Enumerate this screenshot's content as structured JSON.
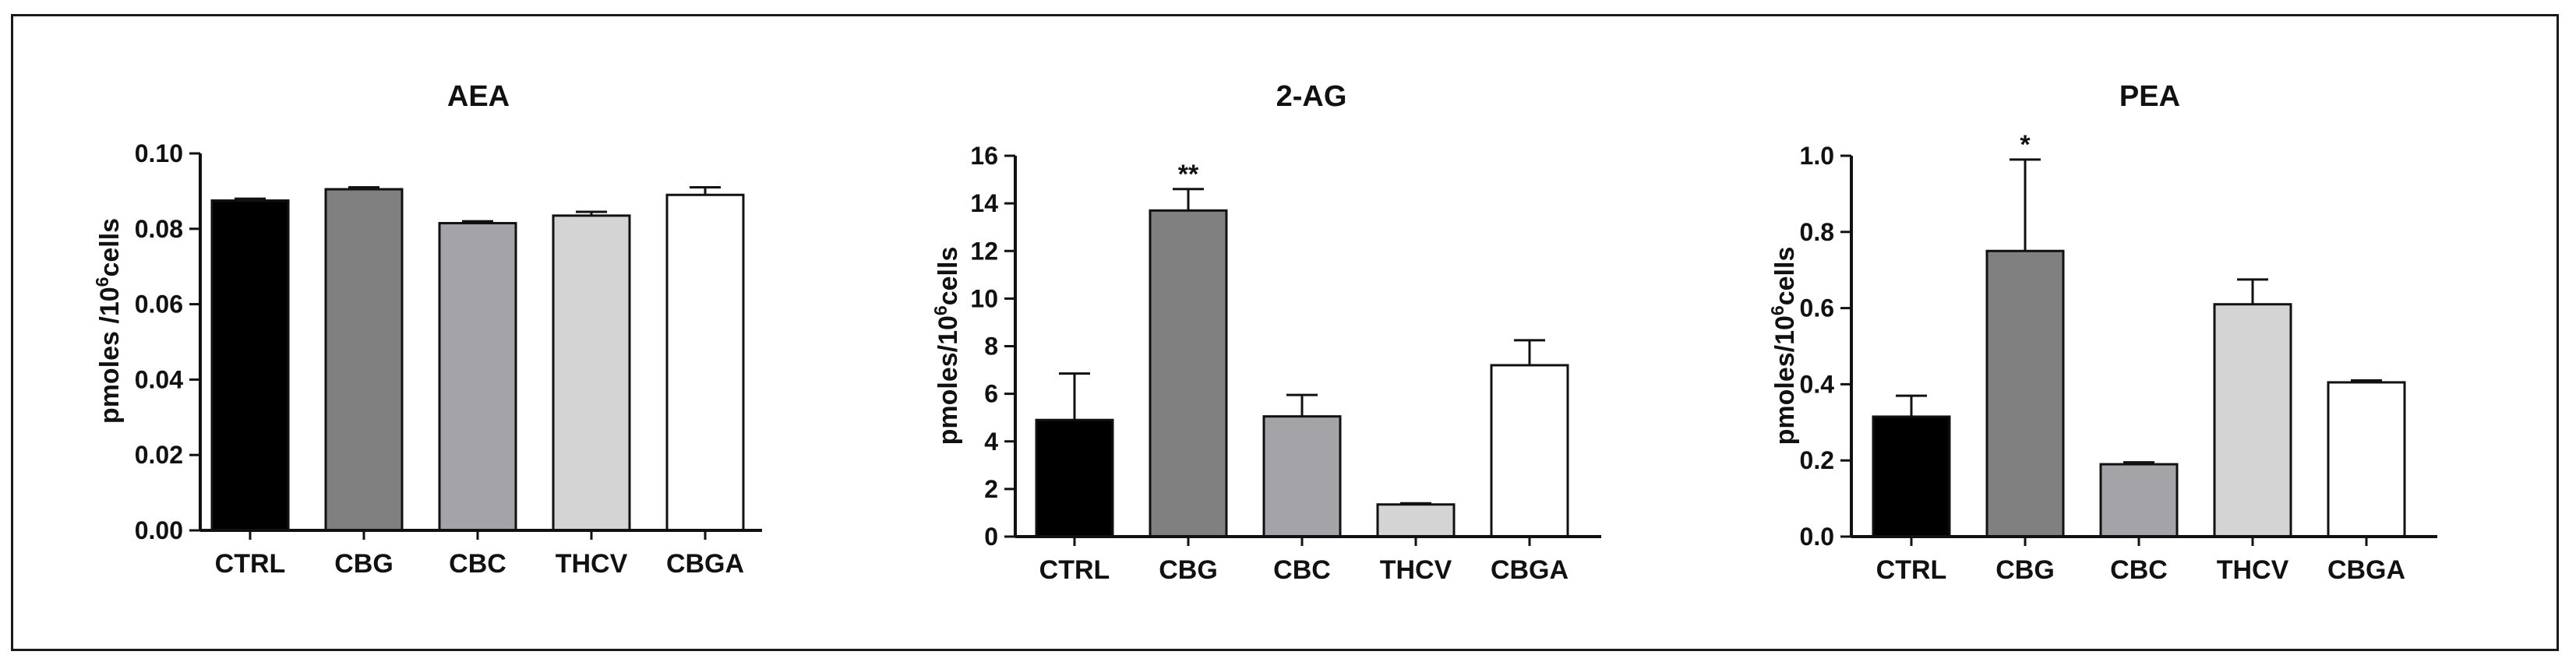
{
  "chart_data": [
    {
      "type": "bar",
      "title": "AEA",
      "ylabel_main": "pmoles /10",
      "ylabel_sup": "6",
      "ylabel_tail": "cells",
      "xlabel": "",
      "ylim": [
        0,
        0.1
      ],
      "yticks": [
        "0.00",
        "0.02",
        "0.04",
        "0.06",
        "0.08",
        "0.10"
      ],
      "categories": [
        "CTRL",
        "CBG",
        "CBC",
        "THCV",
        "CBGA"
      ],
      "values": [
        0.0875,
        0.0905,
        0.0815,
        0.0835,
        0.089
      ],
      "errors": [
        0.0005,
        0.0005,
        0.0005,
        0.001,
        0.002
      ],
      "fill_colors": [
        "#000000",
        "#808080",
        "#a3a3a8",
        "#d4d4d4",
        "#ffffff"
      ],
      "annotations": [
        "",
        "",
        "",
        "",
        ""
      ]
    },
    {
      "type": "bar",
      "title": "2-AG",
      "ylabel_main": "pmoles/10",
      "ylabel_sup": "6",
      "ylabel_tail": "cells",
      "xlabel": "",
      "ylim": [
        0,
        16
      ],
      "yticks": [
        "0",
        "2",
        "4",
        "6",
        "8",
        "10",
        "12",
        "14",
        "16"
      ],
      "categories": [
        "CTRL",
        "CBG",
        "CBC",
        "THCV",
        "CBGA"
      ],
      "values": [
        4.9,
        13.7,
        5.05,
        1.35,
        7.2
      ],
      "errors": [
        1.95,
        0.9,
        0.9,
        0.05,
        1.05
      ],
      "fill_colors": [
        "#000000",
        "#808080",
        "#a3a3a8",
        "#d4d4d4",
        "#ffffff"
      ],
      "annotations": [
        "",
        "**",
        "",
        "",
        ""
      ]
    },
    {
      "type": "bar",
      "title": "PEA",
      "ylabel_main": "pmoles/10",
      "ylabel_sup": "6",
      "ylabel_tail": "cells",
      "xlabel": "",
      "ylim": [
        0,
        1.0
      ],
      "yticks": [
        "0.0",
        "0.2",
        "0.4",
        "0.6",
        "0.8",
        "1.0"
      ],
      "categories": [
        "CTRL",
        "CBG",
        "CBC",
        "THCV",
        "CBGA"
      ],
      "values": [
        0.315,
        0.75,
        0.19,
        0.61,
        0.405
      ],
      "errors": [
        0.055,
        0.24,
        0.005,
        0.065,
        0.005
      ],
      "fill_colors": [
        "#000000",
        "#808080",
        "#a3a3a8",
        "#d4d4d4",
        "#ffffff"
      ],
      "annotations": [
        "",
        "*",
        "",
        "",
        ""
      ]
    }
  ]
}
